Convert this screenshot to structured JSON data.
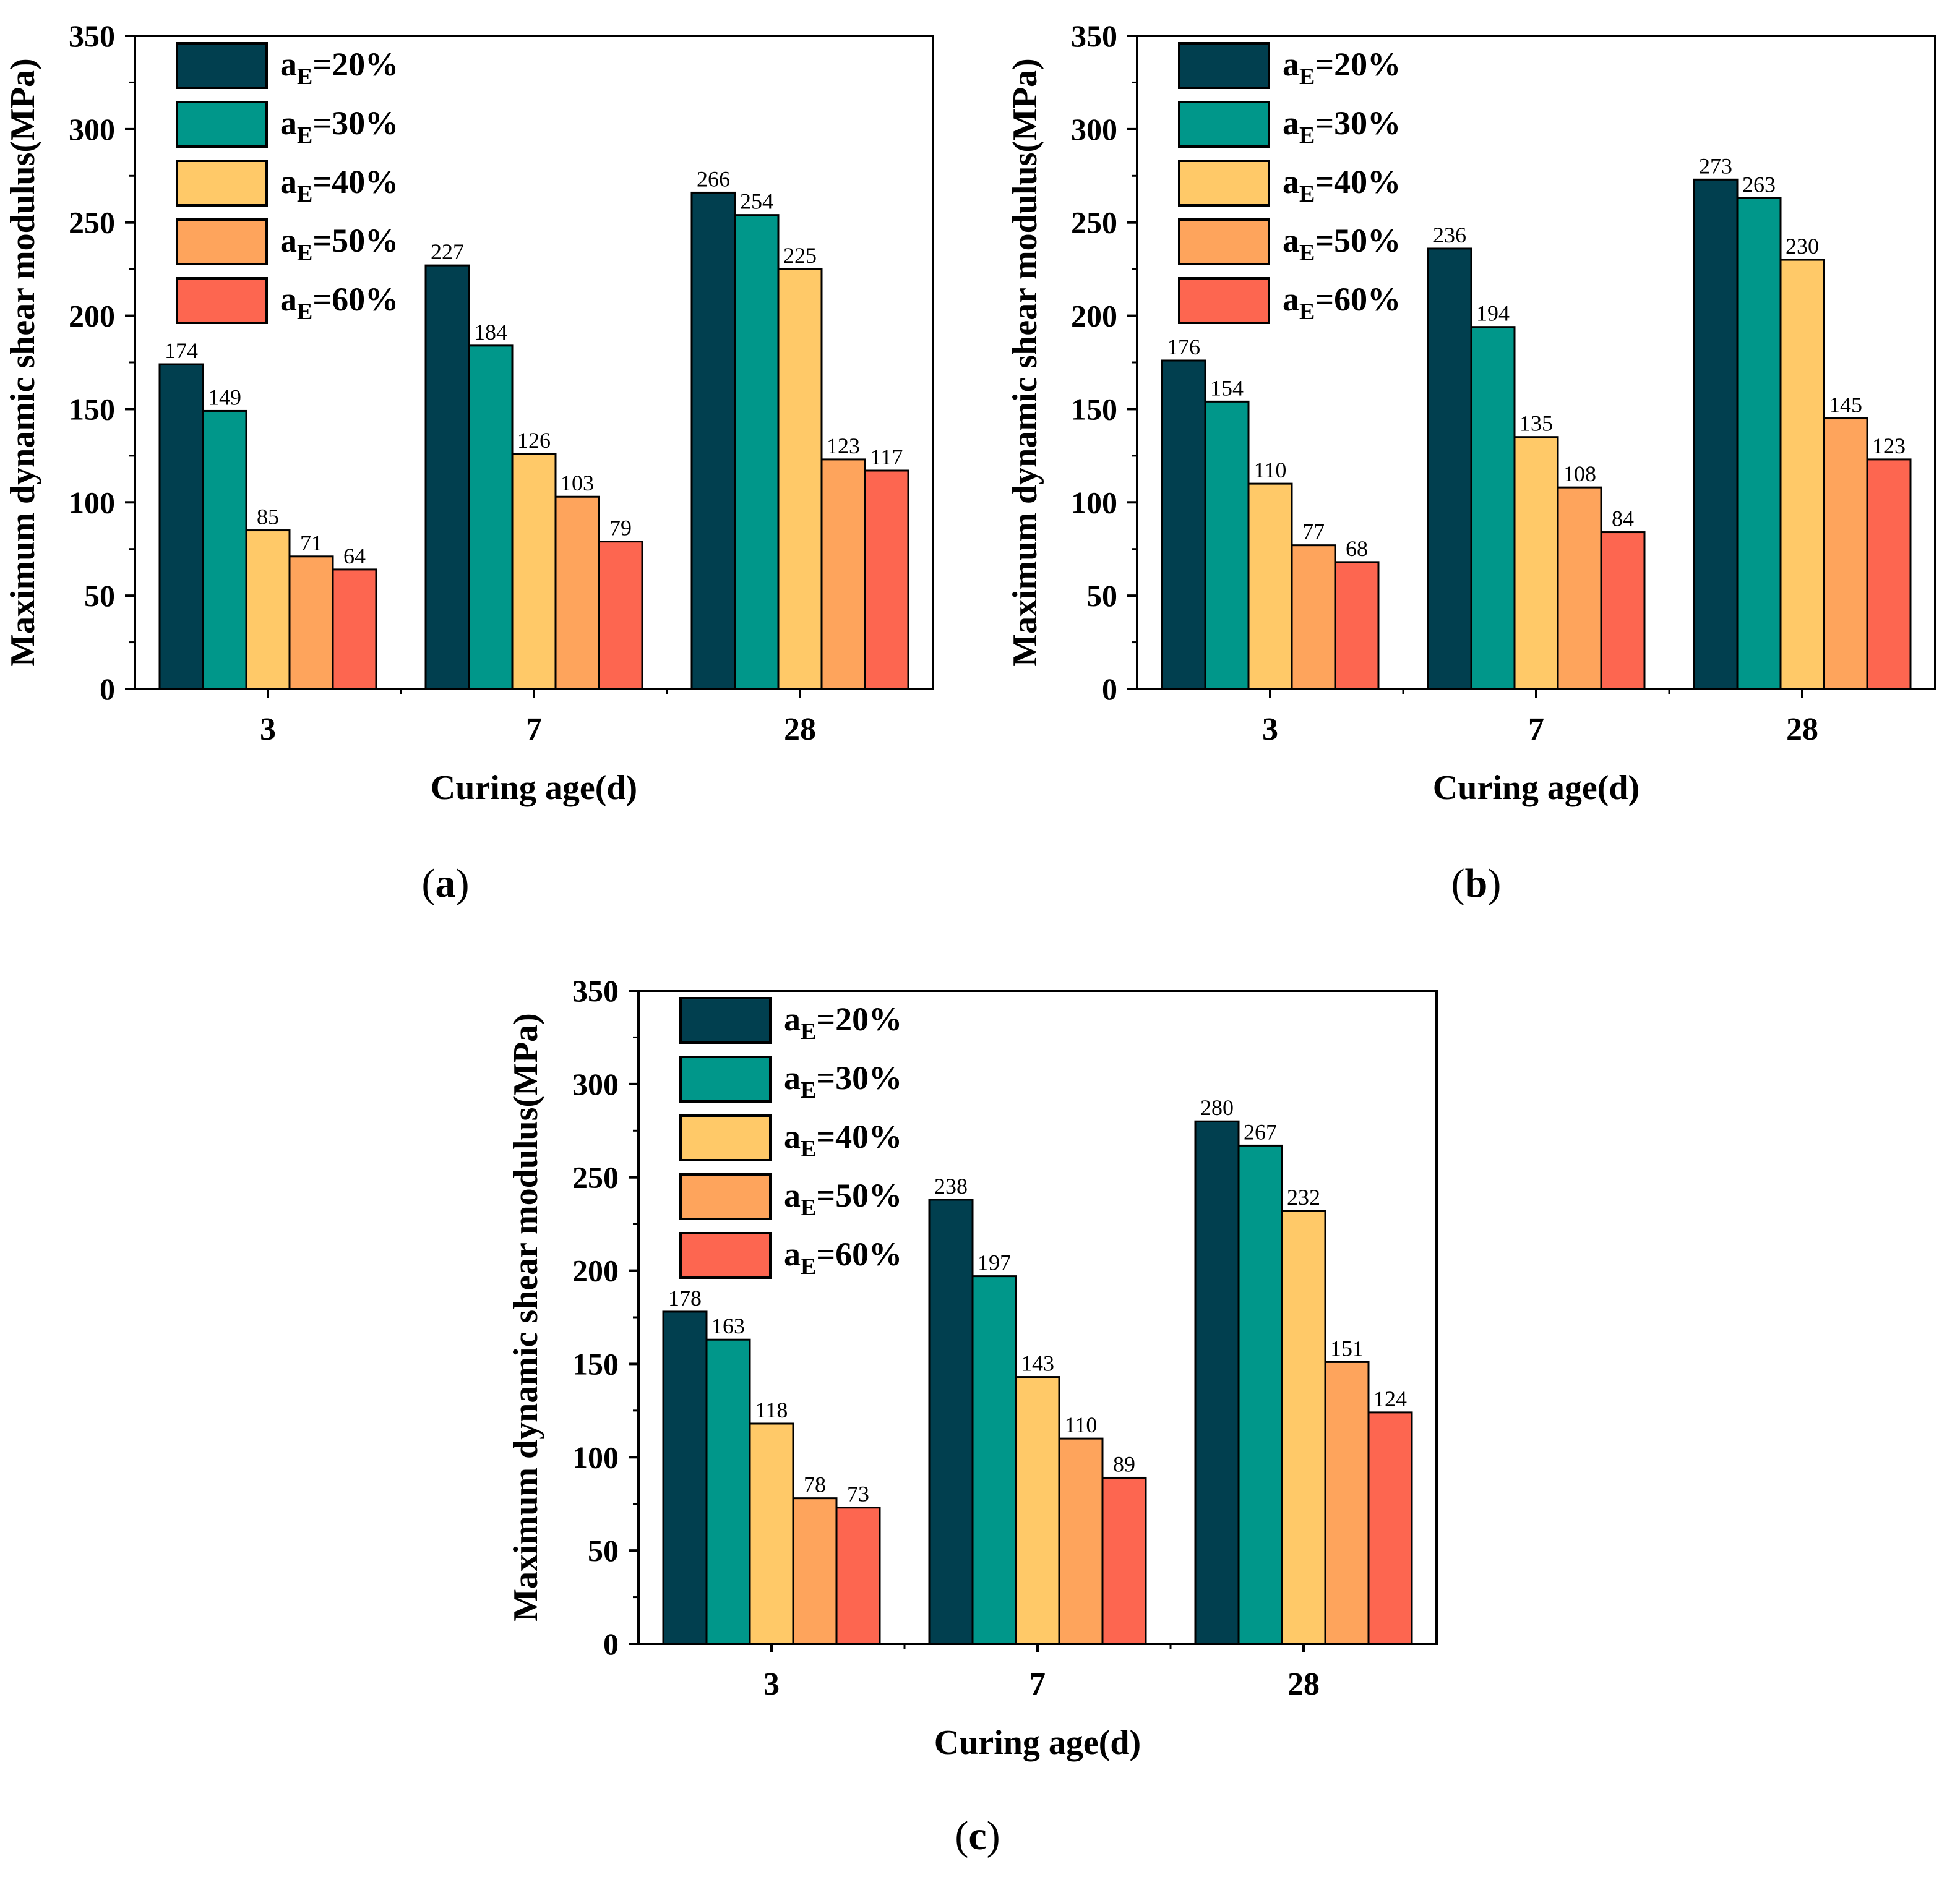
{
  "series_colors": [
    "#013F4F",
    "#00978A",
    "#FFC968",
    "#FEA45C",
    "#FD6650"
  ],
  "chart_data": [
    {
      "type": "bar",
      "panel_label": "(a)",
      "xlabel": "Curing age(d)",
      "ylabel": "Maximum dynamic shear modulus(MPa)",
      "ylim": [
        0,
        350
      ],
      "yticks": [
        0,
        50,
        100,
        150,
        200,
        250,
        300,
        350
      ],
      "categories": [
        "3",
        "7",
        "28"
      ],
      "legend": {
        "position": "top-left"
      },
      "series": [
        {
          "name": "20%",
          "name_prefix": "a",
          "name_subscript": "E",
          "name_eq": "=",
          "values": [
            174,
            227,
            266
          ]
        },
        {
          "name": "30%",
          "name_prefix": "a",
          "name_subscript": "E",
          "name_eq": "=",
          "values": [
            149,
            184,
            254
          ]
        },
        {
          "name": "40%",
          "name_prefix": "a",
          "name_subscript": "E",
          "name_eq": "=",
          "values": [
            85,
            126,
            225
          ]
        },
        {
          "name": "50%",
          "name_prefix": "a",
          "name_subscript": "E",
          "name_eq": "=",
          "values": [
            71,
            103,
            123
          ]
        },
        {
          "name": "60%",
          "name_prefix": "a",
          "name_subscript": "E",
          "name_eq": "=",
          "values": [
            64,
            79,
            117
          ]
        }
      ]
    },
    {
      "type": "bar",
      "panel_label": "(b)",
      "xlabel": "Curing age(d)",
      "ylabel": "Maximum dynamic shear modulus(MPa)",
      "ylim": [
        0,
        350
      ],
      "yticks": [
        0,
        50,
        100,
        150,
        200,
        250,
        300,
        350
      ],
      "categories": [
        "3",
        "7",
        "28"
      ],
      "legend": {
        "position": "top-left"
      },
      "series": [
        {
          "name": "20%",
          "name_prefix": "a",
          "name_subscript": "E",
          "name_eq": "=",
          "values": [
            176,
            236,
            273
          ]
        },
        {
          "name": "30%",
          "name_prefix": "a",
          "name_subscript": "E",
          "name_eq": "=",
          "values": [
            154,
            194,
            263
          ]
        },
        {
          "name": "40%",
          "name_prefix": "a",
          "name_subscript": "E",
          "name_eq": "=",
          "values": [
            110,
            135,
            230
          ]
        },
        {
          "name": "50%",
          "name_prefix": "a",
          "name_subscript": "E",
          "name_eq": "=",
          "values": [
            77,
            108,
            145
          ]
        },
        {
          "name": "60%",
          "name_prefix": "a",
          "name_subscript": "E",
          "name_eq": "=",
          "values": [
            68,
            84,
            123
          ]
        }
      ]
    },
    {
      "type": "bar",
      "panel_label": "(c)",
      "xlabel": "Curing age(d)",
      "ylabel": "Maximum dynamic shear modulus(MPa)",
      "ylim": [
        0,
        350
      ],
      "yticks": [
        0,
        50,
        100,
        150,
        200,
        250,
        300,
        350
      ],
      "categories": [
        "3",
        "7",
        "28"
      ],
      "legend": {
        "position": "top-left"
      },
      "series": [
        {
          "name": "20%",
          "name_prefix": "a",
          "name_subscript": "E",
          "name_eq": "=",
          "values": [
            178,
            238,
            280
          ]
        },
        {
          "name": "30%",
          "name_prefix": "a",
          "name_subscript": "E",
          "name_eq": "=",
          "values": [
            163,
            197,
            267
          ]
        },
        {
          "name": "40%",
          "name_prefix": "a",
          "name_subscript": "E",
          "name_eq": "=",
          "values": [
            118,
            143,
            232
          ]
        },
        {
          "name": "50%",
          "name_prefix": "a",
          "name_subscript": "E",
          "name_eq": "=",
          "values": [
            78,
            110,
            151
          ]
        },
        {
          "name": "60%",
          "name_prefix": "a",
          "name_subscript": "E",
          "name_eq": "=",
          "values": [
            73,
            89,
            124
          ]
        }
      ]
    }
  ]
}
